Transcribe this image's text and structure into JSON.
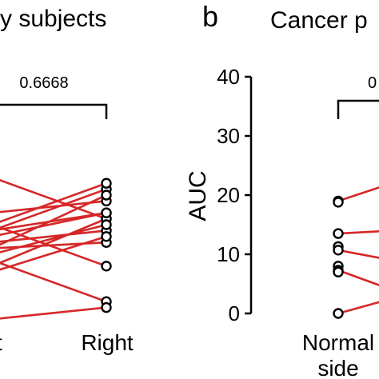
{
  "chart_data": [
    {
      "type": "line",
      "panel_title": "y subjects",
      "p_value": "0.6668",
      "categories": [
        "t",
        "Right"
      ],
      "ylim": [
        0,
        40
      ],
      "series": [
        {
          "values": [
            9,
            2
          ]
        },
        {
          "values": [
            23,
            16
          ]
        },
        {
          "values": [
            17,
            19
          ]
        },
        {
          "values": [
            14,
            17
          ]
        },
        {
          "values": [
            14,
            21
          ]
        },
        {
          "values": [
            15,
            22
          ]
        },
        {
          "values": [
            11,
            20
          ]
        },
        {
          "values": [
            12,
            14
          ]
        },
        {
          "values": [
            11,
            12
          ]
        },
        {
          "values": [
            7,
            13
          ]
        },
        {
          "values": [
            8,
            16
          ]
        },
        {
          "values": [
            13,
            17
          ]
        },
        {
          "values": [
            10,
            15
          ]
        },
        {
          "values": [
            15,
            8
          ]
        },
        {
          "values": [
            -1,
            1
          ]
        }
      ],
      "line_color": "#d62728"
    },
    {
      "type": "line",
      "panel_label": "b",
      "panel_title": "Cancer p",
      "p_value_fragment": "0",
      "ylabel": "AUC",
      "ylim": [
        0,
        40
      ],
      "yticks": [
        "0",
        "10",
        "20",
        "30",
        "40"
      ],
      "categories": [
        "Normal",
        "side"
      ],
      "normal_side_values": [
        19,
        18.8,
        13.5,
        11.3,
        10.7,
        8,
        7.3,
        7,
        0
      ],
      "series": [
        {
          "values": [
            19,
            22
          ]
        },
        {
          "values": [
            13.5,
            14
          ]
        },
        {
          "values": [
            10.7,
            9
          ]
        },
        {
          "values": [
            7.3,
            4
          ]
        },
        {
          "values": [
            0,
            2.5
          ]
        }
      ],
      "line_color": "#d62728"
    }
  ]
}
